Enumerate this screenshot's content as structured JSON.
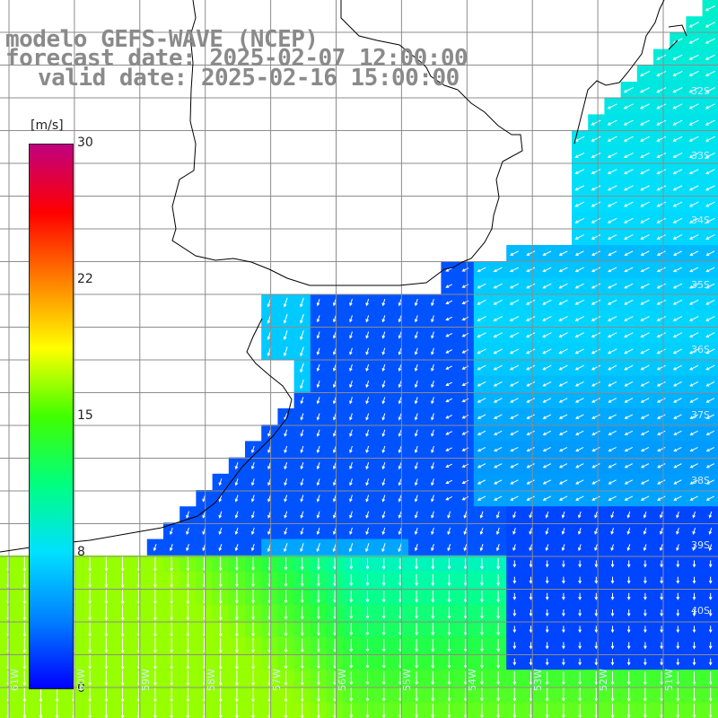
{
  "title": {
    "line1": "modelo GEFS-WAVE (NCEP)",
    "line2": "forecast date: 2025-02-07 12:00:00",
    "line3": "valid date: 2025-02-16 15:00:00"
  },
  "colorbar": {
    "unit": "[m/s]",
    "ticks": [
      "30",
      "22",
      "15",
      "8",
      "0"
    ],
    "colors": [
      "#0000ff",
      "#0080ff",
      "#00e0ff",
      "#00ff80",
      "#40ff00",
      "#ffff00",
      "#ff8000",
      "#ff0000",
      "#c00080"
    ]
  },
  "lat_labels": [
    "32S",
    "33S",
    "34S",
    "35S",
    "36S",
    "37S",
    "38S",
    "39S",
    "40S"
  ],
  "lon_labels": [
    "61W",
    "60W",
    "59W",
    "58W",
    "57W",
    "56W",
    "55W",
    "54W",
    "53W",
    "52W",
    "51W"
  ],
  "colors": {
    "land": "#ffffff",
    "coast": "#000000",
    "grid": "#8c8c8c",
    "arrow": "#ffffff"
  }
}
